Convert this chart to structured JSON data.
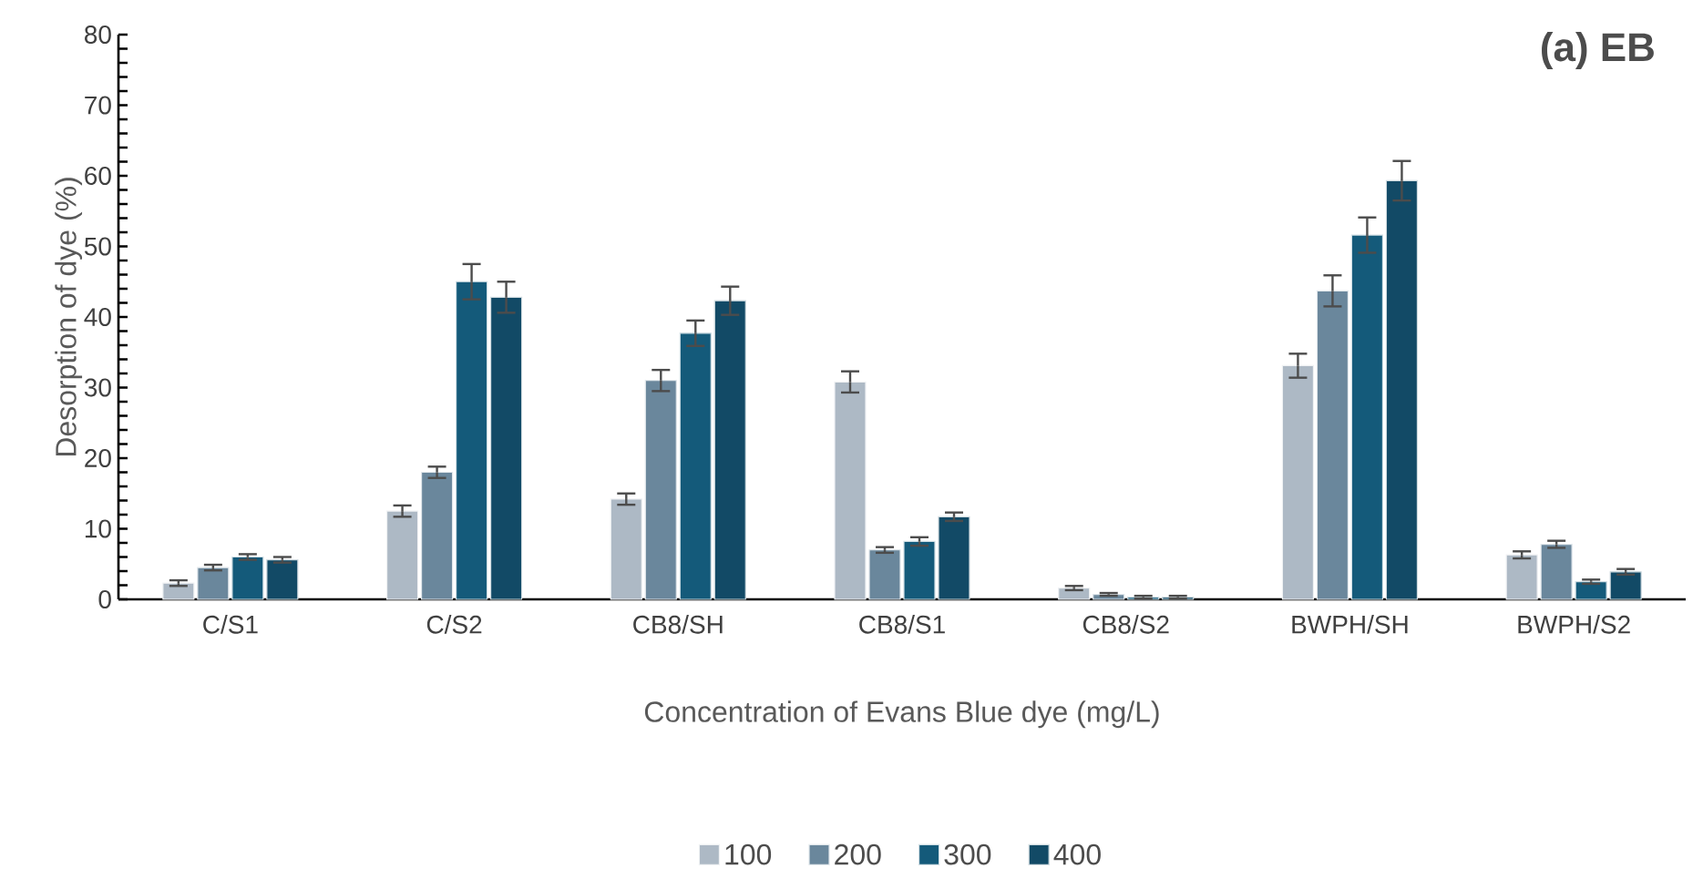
{
  "chart_data": {
    "type": "bar",
    "xlabel": "Concentration of Evans Blue dye (mg/L)",
    "ylabel": "Desorption of dye (%)",
    "annotations": [
      "**(a) EB**"
    ],
    "categories": [
      "C/S1",
      "C/S2",
      "CB8/SH",
      "CB8/S1",
      "CB8/S2",
      "BWPH/SH",
      "BWPH/S2"
    ],
    "series": [
      {
        "name": "100",
        "color": "#adb9c5",
        "values": [
          2.3,
          12.5,
          14.2,
          30.8,
          1.6,
          33.1,
          6.3
        ],
        "errors": [
          0.4,
          0.8,
          0.8,
          1.5,
          0.3,
          1.7,
          0.5
        ]
      },
      {
        "name": "200",
        "color": "#6a879c",
        "values": [
          4.5,
          18,
          31,
          7,
          0.7,
          43.7,
          7.8
        ],
        "errors": [
          0.4,
          0.8,
          1.5,
          0.4,
          0.2,
          2.2,
          0.5
        ]
      },
      {
        "name": "300",
        "color": "#145a7a",
        "values": [
          6.0,
          45,
          37.7,
          8.2,
          0.3,
          51.6,
          2.5
        ],
        "errors": [
          0.4,
          2.5,
          1.8,
          0.6,
          0.2,
          2.5,
          0.3
        ]
      },
      {
        "name": "400",
        "color": "#124a66",
        "values": [
          5.6,
          42.8,
          42.3,
          11.7,
          0.3,
          59.3,
          3.9
        ],
        "errors": [
          0.4,
          2.2,
          2.0,
          0.6,
          0.2,
          2.8,
          0.4
        ]
      }
    ],
    "ylim": [
      0,
      80
    ],
    "yticks": [
      0,
      10,
      20,
      30,
      40,
      50,
      60,
      70,
      80
    ],
    "grid": false,
    "legend": "bottom"
  }
}
